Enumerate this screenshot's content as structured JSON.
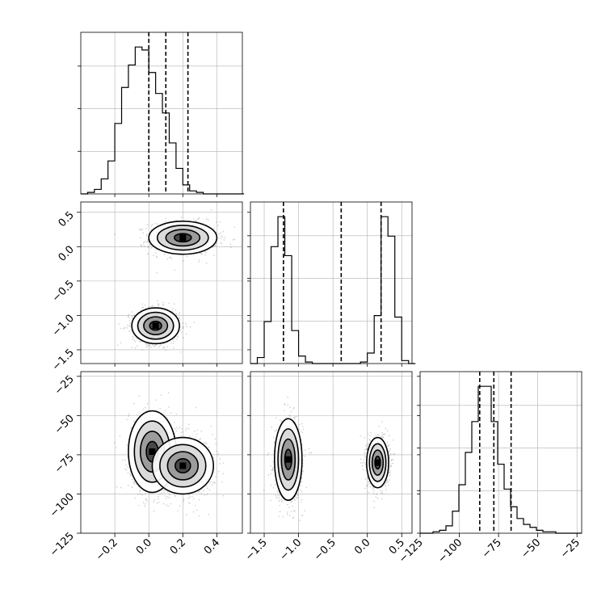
{
  "chart_data": {
    "type": "corner",
    "grid": true,
    "parameters": [
      {
        "range": [
          -0.4,
          0.55
        ],
        "ticks": [
          -0.2,
          0.0,
          0.2,
          0.4
        ],
        "tick_labels": [
          "−0.2",
          "0.0",
          "0.2",
          "0.4"
        ],
        "quantiles": [
          0.0,
          0.1,
          0.23
        ],
        "histogram": {
          "bin_start": -0.4,
          "bin_width": 0.04,
          "counts": [
            0,
            1,
            3,
            10,
            22,
            47,
            71,
            86,
            98,
            96,
            81,
            67,
            54,
            34,
            17,
            6,
            2,
            1,
            0,
            0,
            0,
            0,
            0,
            0
          ]
        }
      },
      {
        "range": [
          -1.7,
          0.65
        ],
        "ticks": [
          -1.5,
          -1.0,
          -0.5,
          0.0,
          0.5
        ],
        "tick_labels": [
          "−1.5",
          "−1.0",
          "−0.5",
          "0.0",
          "0.5"
        ],
        "quantiles": [
          -1.22,
          -0.38,
          0.2
        ],
        "histogram": {
          "bin_start": -1.7,
          "bin_width": 0.1,
          "counts": [
            0,
            4,
            28,
            78,
            98,
            72,
            22,
            5,
            1,
            0,
            0,
            0,
            0,
            0,
            0,
            0,
            1,
            7,
            32,
            98,
            85,
            31,
            2,
            0
          ]
        }
      },
      {
        "range": [
          -125,
          -22
        ],
        "ticks": [
          -125,
          -100,
          -75,
          -50,
          -25
        ],
        "tick_labels": [
          "−125",
          "−100",
          "−75",
          "−50",
          "−25"
        ],
        "quantiles": [
          -87,
          -78,
          -67
        ],
        "histogram": {
          "bin_start": -125,
          "bin_width": 4.12,
          "counts": [
            0,
            0,
            1,
            2,
            5,
            15,
            33,
            55,
            76,
            100,
            100,
            76,
            47,
            30,
            18,
            10,
            6,
            4,
            2,
            1,
            1,
            0,
            0,
            0,
            0
          ]
        }
      }
    ],
    "panels_2d": [
      {
        "x_param": 0,
        "y_param": 1,
        "y_ticks": [
          -1.5,
          -1.0,
          -0.5,
          0.0,
          0.5
        ],
        "y_tick_labels": [
          "−1.5",
          "−1.0",
          "−0.5",
          "0.0",
          "0.5"
        ],
        "clusters": [
          {
            "center": [
              0.2,
              0.13
            ],
            "radius": [
              0.1,
              0.12
            ],
            "weight": 0.5
          },
          {
            "center": [
              0.04,
              -1.15
            ],
            "radius": [
              0.07,
              0.13
            ],
            "weight": 0.5
          }
        ]
      },
      {
        "x_param": 0,
        "y_param": 2,
        "y_ticks": [
          -125,
          -100,
          -75,
          -50,
          -25
        ],
        "y_tick_labels": [
          "−125",
          "−100",
          "−75",
          "−50",
          "−25"
        ],
        "clusters": [
          {
            "center": [
              0.02,
              -73
            ],
            "radius": [
              0.07,
              13
            ],
            "weight": 0.5
          },
          {
            "center": [
              0.2,
              -82
            ],
            "radius": [
              0.09,
              9
            ],
            "weight": 0.5
          }
        ]
      },
      {
        "x_param": 1,
        "y_param": 2,
        "clusters": [
          {
            "center": [
              -1.15,
              -78
            ],
            "radius": [
              0.1,
              13
            ],
            "weight": 0.5
          },
          {
            "center": [
              0.15,
              -80
            ],
            "radius": [
              0.08,
              8
            ],
            "weight": 0.5
          }
        ]
      }
    ]
  }
}
